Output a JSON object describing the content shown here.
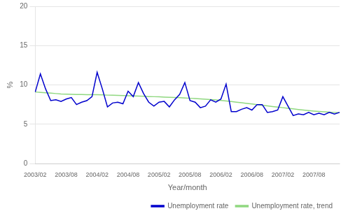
{
  "chart_data": {
    "type": "line",
    "xlabel": "Year/month",
    "ylabel": "%",
    "categories": [
      "2003/02",
      null,
      null,
      null,
      null,
      null,
      "2003/08",
      null,
      null,
      null,
      null,
      null,
      "2004/02",
      null,
      null,
      null,
      null,
      null,
      "2004/08",
      null,
      null,
      null,
      null,
      null,
      "2005/02",
      null,
      null,
      null,
      null,
      null,
      "2005/08",
      null,
      null,
      null,
      null,
      null,
      "2006/02",
      null,
      null,
      null,
      null,
      null,
      "2006/08",
      null,
      null,
      null,
      null,
      null,
      "2007/02",
      null,
      null,
      null,
      null,
      null,
      "2007/08",
      null,
      null,
      null,
      null,
      null
    ],
    "series": [
      {
        "name": "Unemployment rate",
        "color": "#0000cd",
        "values": [
          9.1,
          11.4,
          9.5,
          8.0,
          8.1,
          7.9,
          8.2,
          8.4,
          7.5,
          7.8,
          8.0,
          8.5,
          11.6,
          9.5,
          7.2,
          7.7,
          7.8,
          7.6,
          9.2,
          8.5,
          10.3,
          8.9,
          7.8,
          7.3,
          7.8,
          7.9,
          7.2,
          8.1,
          8.8,
          10.3,
          8.0,
          7.8,
          7.1,
          7.3,
          8.1,
          7.8,
          8.2,
          10.1,
          6.6,
          6.6,
          6.9,
          7.1,
          6.8,
          7.5,
          7.5,
          6.5,
          6.6,
          6.8,
          8.5,
          7.3,
          6.1,
          6.3,
          6.2,
          6.5,
          6.2,
          6.4,
          6.2,
          6.5,
          6.3,
          6.5
        ]
      },
      {
        "name": "Unemployment rate, trend",
        "color": "#90d880",
        "values": [
          9.1,
          9.05,
          9.0,
          8.95,
          8.9,
          8.85,
          8.82,
          8.8,
          8.78,
          8.77,
          8.76,
          8.75,
          8.75,
          8.73,
          8.7,
          8.68,
          8.67,
          8.65,
          8.62,
          8.6,
          8.58,
          8.55,
          8.52,
          8.5,
          8.48,
          8.45,
          8.42,
          8.4,
          8.37,
          8.33,
          8.3,
          8.27,
          8.23,
          8.18,
          8.13,
          8.08,
          8.02,
          7.96,
          7.88,
          7.8,
          7.73,
          7.65,
          7.57,
          7.48,
          7.4,
          7.33,
          7.25,
          7.18,
          7.1,
          7.02,
          6.95,
          6.87,
          6.8,
          6.73,
          6.67,
          6.62,
          6.57,
          6.53,
          6.5,
          6.47
        ]
      }
    ],
    "ylim": [
      0,
      20
    ],
    "yticks": [
      0,
      5,
      10,
      15,
      20
    ],
    "grid": "y",
    "legend": "lower right"
  }
}
